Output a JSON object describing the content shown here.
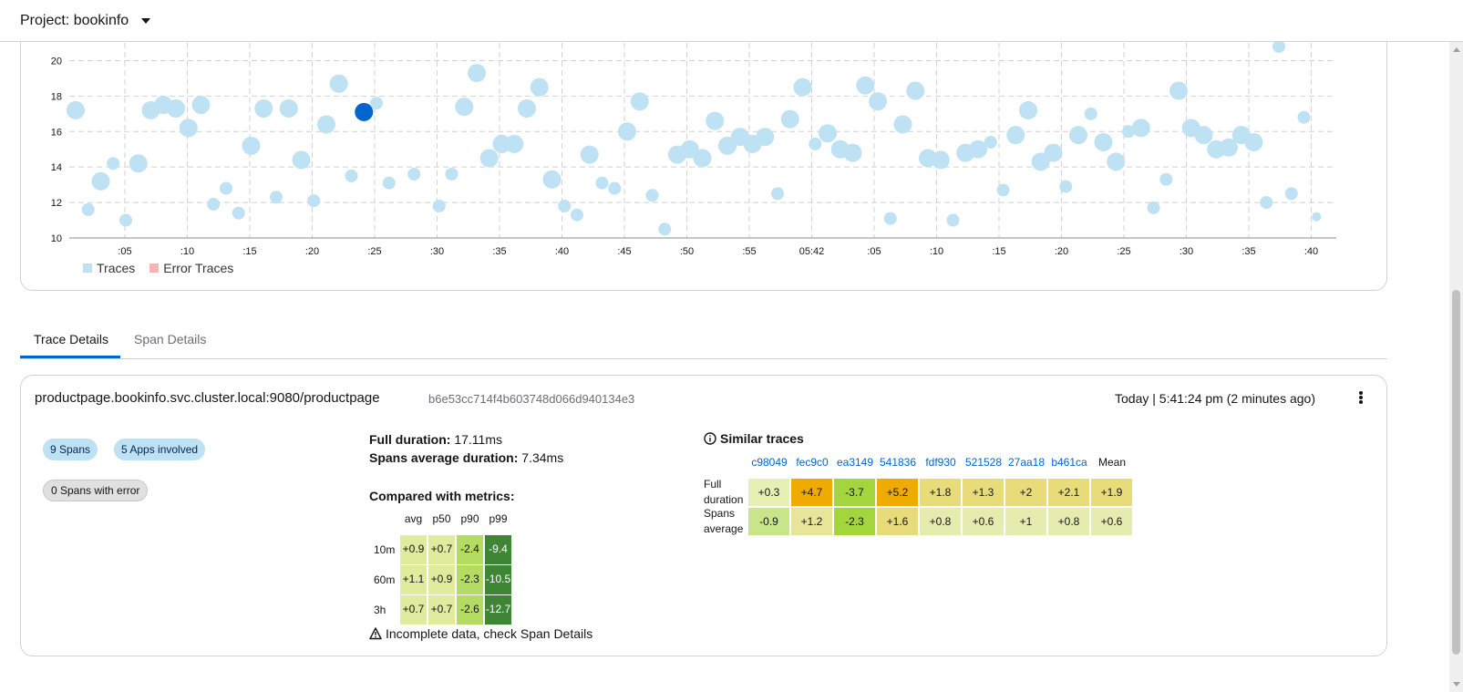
{
  "header": {
    "project_label": "Project: bookinfo"
  },
  "chart_data": {
    "type": "scatter",
    "ylim": [
      10,
      21
    ],
    "yticks": [
      "10",
      "12",
      "14",
      "16",
      "18",
      "20"
    ],
    "xticks": [
      ":05",
      ":10",
      ":15",
      ":20",
      ":25",
      ":30",
      ":35",
      ":40",
      ":45",
      ":50",
      ":55",
      "05:42",
      ":05",
      ":10",
      ":15",
      ":20",
      ":25",
      ":30",
      ":35",
      ":40"
    ],
    "xrange": [
      0,
      98
    ],
    "legend": [
      {
        "label": "Traces",
        "color": "#bee1f4"
      },
      {
        "label": "Error Traces",
        "color": "#f9b3b3"
      }
    ],
    "legend_position": "bottom-left",
    "colors": {
      "trace": "#bee1f4",
      "selected": "#0066cc",
      "grid": "#d2d2d2"
    },
    "points": [
      {
        "x": 1,
        "y": 17.2,
        "s": "l"
      },
      {
        "x": 2,
        "y": 11.6,
        "s": "s"
      },
      {
        "x": 3,
        "y": 13.2,
        "s": "l"
      },
      {
        "x": 4,
        "y": 14.2,
        "s": "s"
      },
      {
        "x": 5,
        "y": 11.0,
        "s": "s"
      },
      {
        "x": 6,
        "y": 14.2,
        "s": "l"
      },
      {
        "x": 7,
        "y": 17.2,
        "s": "l"
      },
      {
        "x": 8,
        "y": 17.5,
        "s": "l"
      },
      {
        "x": 9,
        "y": 17.3,
        "s": "l"
      },
      {
        "x": 10,
        "y": 16.2,
        "s": "l"
      },
      {
        "x": 11,
        "y": 17.5,
        "s": "l"
      },
      {
        "x": 12,
        "y": 11.9,
        "s": "s"
      },
      {
        "x": 13,
        "y": 12.8,
        "s": "s"
      },
      {
        "x": 14,
        "y": 11.4,
        "s": "s"
      },
      {
        "x": 15,
        "y": 15.2,
        "s": "l"
      },
      {
        "x": 16,
        "y": 17.3,
        "s": "l"
      },
      {
        "x": 17,
        "y": 12.3,
        "s": "s"
      },
      {
        "x": 18,
        "y": 17.3,
        "s": "l"
      },
      {
        "x": 19,
        "y": 14.4,
        "s": "l"
      },
      {
        "x": 20,
        "y": 12.1,
        "s": "s"
      },
      {
        "x": 21,
        "y": 16.4,
        "s": "l"
      },
      {
        "x": 22,
        "y": 18.7,
        "s": "l"
      },
      {
        "x": 23,
        "y": 13.5,
        "s": "s"
      },
      {
        "x": 24,
        "y": 17.1,
        "s": "l",
        "sel": true
      },
      {
        "x": 25,
        "y": 17.6,
        "s": "s"
      },
      {
        "x": 26,
        "y": 13.1,
        "s": "s"
      },
      {
        "x": 28,
        "y": 13.6,
        "s": "s"
      },
      {
        "x": 30,
        "y": 11.8,
        "s": "s"
      },
      {
        "x": 31,
        "y": 13.6,
        "s": "s"
      },
      {
        "x": 32,
        "y": 17.4,
        "s": "l"
      },
      {
        "x": 33,
        "y": 19.3,
        "s": "l"
      },
      {
        "x": 34,
        "y": 14.5,
        "s": "l"
      },
      {
        "x": 35,
        "y": 15.3,
        "s": "l"
      },
      {
        "x": 36,
        "y": 15.3,
        "s": "l"
      },
      {
        "x": 37,
        "y": 17.3,
        "s": "l"
      },
      {
        "x": 38,
        "y": 18.5,
        "s": "l"
      },
      {
        "x": 39,
        "y": 13.3,
        "s": "l"
      },
      {
        "x": 40,
        "y": 11.8,
        "s": "s"
      },
      {
        "x": 41,
        "y": 11.3,
        "s": "s"
      },
      {
        "x": 42,
        "y": 14.7,
        "s": "l"
      },
      {
        "x": 43,
        "y": 13.1,
        "s": "s"
      },
      {
        "x": 44,
        "y": 12.8,
        "s": "s"
      },
      {
        "x": 45,
        "y": 16.0,
        "s": "l"
      },
      {
        "x": 46,
        "y": 17.7,
        "s": "l"
      },
      {
        "x": 47,
        "y": 12.4,
        "s": "s"
      },
      {
        "x": 48,
        "y": 10.5,
        "s": "s"
      },
      {
        "x": 49,
        "y": 14.7,
        "s": "l"
      },
      {
        "x": 50,
        "y": 15.0,
        "s": "l"
      },
      {
        "x": 51,
        "y": 14.5,
        "s": "l"
      },
      {
        "x": 52,
        "y": 16.6,
        "s": "l"
      },
      {
        "x": 53,
        "y": 15.2,
        "s": "l"
      },
      {
        "x": 54,
        "y": 15.7,
        "s": "l"
      },
      {
        "x": 55,
        "y": 15.3,
        "s": "l"
      },
      {
        "x": 56,
        "y": 15.7,
        "s": "l"
      },
      {
        "x": 57,
        "y": 12.5,
        "s": "s"
      },
      {
        "x": 58,
        "y": 16.7,
        "s": "l"
      },
      {
        "x": 59,
        "y": 18.5,
        "s": "l"
      },
      {
        "x": 60,
        "y": 15.3,
        "s": "s"
      },
      {
        "x": 61,
        "y": 15.9,
        "s": "l"
      },
      {
        "x": 62,
        "y": 15.0,
        "s": "l"
      },
      {
        "x": 63,
        "y": 14.8,
        "s": "l"
      },
      {
        "x": 64,
        "y": 18.6,
        "s": "l"
      },
      {
        "x": 65,
        "y": 17.7,
        "s": "l"
      },
      {
        "x": 66,
        "y": 11.1,
        "s": "s"
      },
      {
        "x": 67,
        "y": 16.4,
        "s": "l"
      },
      {
        "x": 68,
        "y": 18.3,
        "s": "l"
      },
      {
        "x": 69,
        "y": 14.5,
        "s": "l"
      },
      {
        "x": 70,
        "y": 14.4,
        "s": "l"
      },
      {
        "x": 71,
        "y": 11.0,
        "s": "s"
      },
      {
        "x": 72,
        "y": 14.8,
        "s": "l"
      },
      {
        "x": 73,
        "y": 15.0,
        "s": "l"
      },
      {
        "x": 74,
        "y": 15.4,
        "s": "s"
      },
      {
        "x": 75,
        "y": 12.7,
        "s": "s"
      },
      {
        "x": 76,
        "y": 15.8,
        "s": "l"
      },
      {
        "x": 77,
        "y": 17.2,
        "s": "l"
      },
      {
        "x": 78,
        "y": 14.3,
        "s": "l"
      },
      {
        "x": 79,
        "y": 14.8,
        "s": "l"
      },
      {
        "x": 80,
        "y": 12.9,
        "s": "s"
      },
      {
        "x": 81,
        "y": 15.8,
        "s": "l"
      },
      {
        "x": 82,
        "y": 17.0,
        "s": "s"
      },
      {
        "x": 83,
        "y": 15.4,
        "s": "l"
      },
      {
        "x": 84,
        "y": 14.3,
        "s": "l"
      },
      {
        "x": 85,
        "y": 16.0,
        "s": "s"
      },
      {
        "x": 86,
        "y": 16.2,
        "s": "l"
      },
      {
        "x": 87,
        "y": 11.7,
        "s": "s"
      },
      {
        "x": 88,
        "y": 13.3,
        "s": "s"
      },
      {
        "x": 89,
        "y": 18.3,
        "s": "l"
      },
      {
        "x": 90,
        "y": 16.2,
        "s": "l"
      },
      {
        "x": 91,
        "y": 15.8,
        "s": "l"
      },
      {
        "x": 92,
        "y": 15.0,
        "s": "l"
      },
      {
        "x": 93,
        "y": 15.1,
        "s": "l"
      },
      {
        "x": 94,
        "y": 15.8,
        "s": "l"
      },
      {
        "x": 95,
        "y": 15.4,
        "s": "l"
      },
      {
        "x": 96,
        "y": 12.0,
        "s": "s"
      },
      {
        "x": 97,
        "y": 20.8,
        "s": "s"
      },
      {
        "x": 98,
        "y": 12.5,
        "s": "s"
      },
      {
        "x": 99,
        "y": 16.8,
        "s": "s"
      },
      {
        "x": 100,
        "y": 11.2,
        "s": "xs"
      }
    ]
  },
  "tabs": [
    {
      "label": "Trace Details",
      "active": true
    },
    {
      "label": "Span Details",
      "active": false
    }
  ],
  "trace": {
    "name": "productpage.bookinfo.svc.cluster.local:9080/productpage",
    "id": "b6e53cc714f4b603748d066d940134e3",
    "time": "Today | 5:41:24 pm (2 minutes ago)",
    "badges": {
      "spans": "9 Spans",
      "apps": "5 Apps involved",
      "errors": "0 Spans with error"
    },
    "full_duration_label": "Full duration:",
    "full_duration": "17.11ms",
    "avg_duration_label": "Spans average duration:",
    "avg_duration": "7.34ms",
    "compared_title": "Compared with metrics:",
    "metric_columns": [
      "avg",
      "p50",
      "p90",
      "p99"
    ],
    "metric_rows": [
      {
        "label": "10m",
        "values": [
          "+0.9",
          "+0.7",
          "-2.4",
          "-9.4"
        ],
        "colors": [
          "#e0eb9e",
          "#e0eb9e",
          "#b4dc63",
          "#3e8635"
        ]
      },
      {
        "label": "60m",
        "values": [
          "+1.1",
          "+0.9",
          "-2.3",
          "-10.5"
        ],
        "colors": [
          "#e0eb9e",
          "#e0eb9e",
          "#b4dc63",
          "#3e8635"
        ]
      },
      {
        "label": "3h",
        "values": [
          "+0.7",
          "+0.7",
          "-2.6",
          "-12.7"
        ],
        "colors": [
          "#e0eb9e",
          "#e0eb9e",
          "#b4dc63",
          "#3e8635"
        ]
      }
    ],
    "warning": "Incomplete data, check Span Details",
    "similar_title": "Similar traces",
    "similar_columns": [
      "c98049",
      "fec9c0",
      "ea3149",
      "541836",
      "fdf930",
      "521528",
      "27aa18",
      "b461ca",
      "Mean"
    ],
    "similar_rows": [
      {
        "label_line1": "Full",
        "label_line2": "duration",
        "values": [
          "+0.3",
          "+4.7",
          "-3.7",
          "+5.2",
          "+1.8",
          "+1.3",
          "+2",
          "+2.1",
          "+1.9"
        ],
        "colors": [
          "#e6f0b4",
          "#f0ab00",
          "#a3d63d",
          "#f0ab00",
          "#e8dc7a",
          "#e8dc7a",
          "#e8dc7a",
          "#e8dc7a",
          "#e8dc7a"
        ]
      },
      {
        "label_line1": "Spans",
        "label_line2": "average",
        "values": [
          "-0.9",
          "+1.2",
          "-2.3",
          "+1.6",
          "+0.8",
          "+0.6",
          "+1",
          "+0.8",
          "+0.6"
        ],
        "colors": [
          "#c9e58a",
          "#e8e49a",
          "#a3d63d",
          "#e8dc7a",
          "#e6ebb0",
          "#e6ebb0",
          "#e6ebb0",
          "#e6ebb0",
          "#e6ebb0"
        ]
      }
    ]
  }
}
